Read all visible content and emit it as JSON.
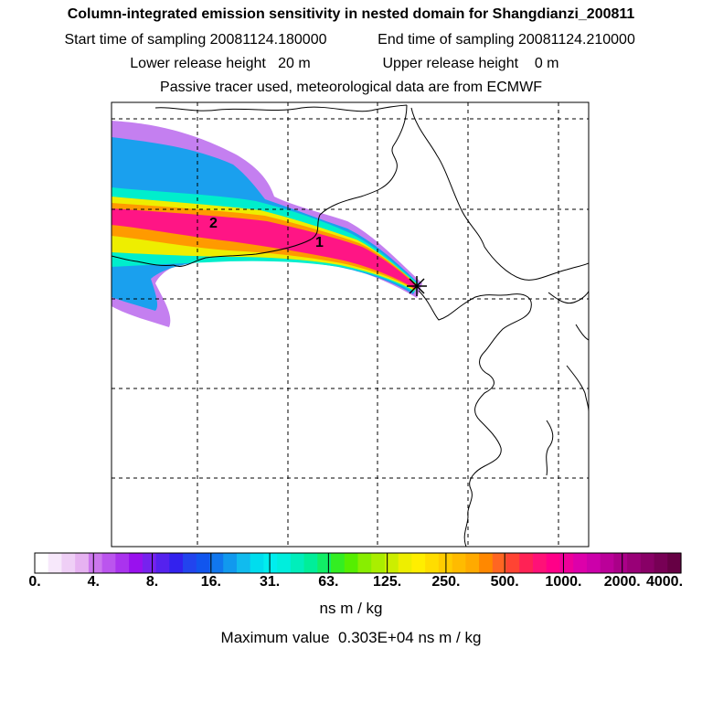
{
  "header": {
    "title": "Column-integrated emission sensitivity in nested domain for Shangdianzi_200811",
    "sampling_start": "Start time of sampling 20081124.180000",
    "sampling_end": "End time of sampling 20081124.210000",
    "lower_release": "Lower release height   20 m",
    "upper_release": "Upper release height    0 m",
    "tracer_info": "Passive tracer used, meteorological data are from ECMWF"
  },
  "map": {
    "day_markers": [
      "1",
      "2"
    ],
    "release_marker": "asterisk"
  },
  "colorbar": {
    "labels": [
      "0.",
      "4.",
      "8.",
      "16.",
      "31.",
      "63.",
      "125.",
      "250.",
      "500.",
      "1000.",
      "2000.",
      "4000."
    ],
    "colors": [
      "#ffffff",
      "#f7e8fb",
      "#efcff6",
      "#e6b2f1",
      "#cc77ee",
      "#bb55ee",
      "#aa33ee",
      "#9911ee",
      "#7722ee",
      "#5522ee",
      "#3322ee",
      "#2244ee",
      "#1155ee",
      "#1177ee",
      "#1199ee",
      "#11bbee",
      "#00ddee",
      "#00eeee",
      "#00eedd",
      "#00eebb",
      "#00ee99",
      "#11ee66",
      "#33ee22",
      "#55ee00",
      "#88ee00",
      "#aaee00",
      "#ccee00",
      "#eeee00",
      "#ffee00",
      "#ffdd00",
      "#ffcc00",
      "#ffbb00",
      "#ffaa00",
      "#ff8800",
      "#ff6622",
      "#ff4433",
      "#ff2255",
      "#ff1177",
      "#ff0088",
      "#ee0099",
      "#dd00aa",
      "#cc00aa",
      "#bb0099",
      "#aa0088",
      "#990077",
      "#880066",
      "#770055",
      "#660044"
    ],
    "unit": "ns m / kg",
    "max_value": "Maximum value  0.303E+04 ns m / kg"
  }
}
